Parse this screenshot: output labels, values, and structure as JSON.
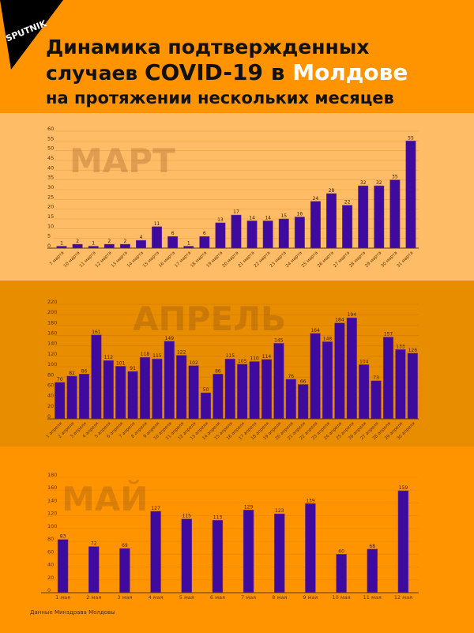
{
  "header": {
    "logo_text": "SPUTNIK",
    "title_line1": "Динамика подтвержденных",
    "title_line2_prefix": "случаев ",
    "title_line2_bold": "COVID-19 в ",
    "title_line2_highlight": "Молдове",
    "title_line3": "на протяжении нескольких месяцев"
  },
  "footer": {
    "source": "Данные Минздрава Молдовы"
  },
  "colors": {
    "bar": "#3F0A9E",
    "header_bg": "#FF9400",
    "march_bg": "#FFBC66",
    "april_bg": "#E88C00",
    "may_bg": "#FF9400",
    "title_highlight": "#FFFFFF"
  },
  "chart_data": [
    {
      "type": "bar",
      "title": "МАРТ",
      "xlabel": "",
      "ylabel": "",
      "ylim": [
        0,
        60
      ],
      "yticks": [
        0,
        5,
        10,
        15,
        20,
        25,
        30,
        35,
        40,
        45,
        50,
        55,
        60
      ],
      "grid": true,
      "categories": [
        "7 марта",
        "10 марта",
        "11 марта",
        "12 марта",
        "13 марта",
        "14 марта",
        "15 марта",
        "16 марта",
        "17 марта",
        "18 марта",
        "19 марта",
        "20 марта",
        "21 марта",
        "22 марта",
        "23 марта",
        "24 марта",
        "25 марта",
        "26 марта",
        "27 марта",
        "28 марта",
        "29 марта",
        "30 марта",
        "31 марта"
      ],
      "values": [
        1,
        2,
        1,
        2,
        2,
        4,
        11,
        6,
        1,
        6,
        13,
        17,
        14,
        14,
        15,
        16,
        24,
        28,
        22,
        32,
        32,
        35,
        55
      ]
    },
    {
      "type": "bar",
      "title": "АПРЕЛЬ",
      "xlabel": "",
      "ylabel": "",
      "ylim": [
        0,
        220
      ],
      "yticks": [
        0,
        20,
        40,
        60,
        80,
        100,
        120,
        140,
        160,
        180,
        200,
        220
      ],
      "grid": true,
      "categories": [
        "1 апреля",
        "2 апреля",
        "3 апреля",
        "4 апреля",
        "5 апреля",
        "6 апреля",
        "7 апреля",
        "8 апреля",
        "9 апреля",
        "10 апреля",
        "11 апреля",
        "12 апреля",
        "13 апреля",
        "14 апреля",
        "15 апреля",
        "16 апреля",
        "17 апреля",
        "18 апреля",
        "19 апреля",
        "20 апреля",
        "21 апреля",
        "22 апреля",
        "23 апреля",
        "24 апреля",
        "25 апреля",
        "26 апреля",
        "27 апреля",
        "28 апреля",
        "29 апреля",
        "30 апреля"
      ],
      "values": [
        70,
        82,
        86,
        161,
        112,
        101,
        91,
        118,
        115,
        149,
        122,
        102,
        50,
        86,
        115,
        105,
        110,
        114,
        145,
        76,
        66,
        164,
        148,
        184,
        194,
        104,
        73,
        157,
        133,
        126
      ]
    },
    {
      "type": "bar",
      "title": "МАЙ",
      "xlabel": "",
      "ylabel": "",
      "ylim": [
        0,
        180
      ],
      "yticks": [
        0,
        20,
        40,
        60,
        80,
        100,
        120,
        140,
        160,
        180
      ],
      "grid": true,
      "categories": [
        "1 мая",
        "2 мая",
        "3 мая",
        "4 мая",
        "5 мая",
        "6 мая",
        "7 мая",
        "8 мая",
        "9 мая",
        "10 мая",
        "11 мая",
        "12 мая"
      ],
      "values": [
        83,
        72,
        69,
        127,
        115,
        113,
        129,
        123,
        139,
        60,
        68,
        159
      ]
    }
  ]
}
